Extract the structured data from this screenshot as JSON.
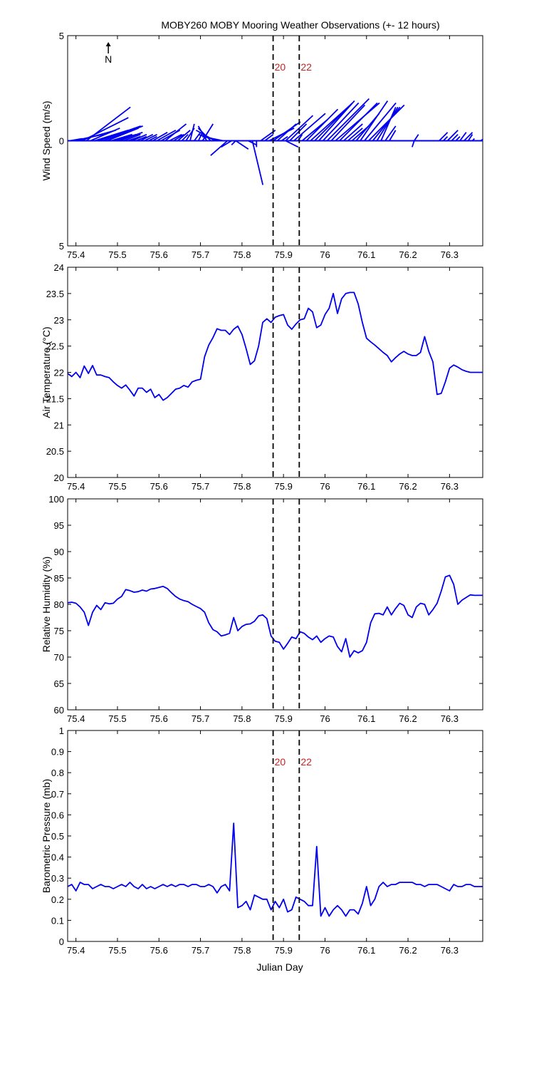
{
  "title": "MOBY260 MOBY Mooring Weather Observations (+- 12 hours)",
  "colors": {
    "series": "#0000ee",
    "marker_label": "#cc2222",
    "axis": "#000000"
  },
  "shared_x": {
    "label": "Julian Day",
    "range": [
      75.38,
      76.38
    ],
    "ticks": [
      75.4,
      75.5,
      75.6,
      75.7,
      75.8,
      75.9,
      76,
      76.1,
      76.2,
      76.3
    ],
    "tick_labels": [
      "75.4",
      "75.5",
      "75.6",
      "75.7",
      "75.8",
      "75.9",
      "76",
      "76.1",
      "76.2",
      "76.3"
    ]
  },
  "time_markers": [
    {
      "x": 75.875,
      "label": "20"
    },
    {
      "x": 75.938,
      "label": "22"
    }
  ],
  "chart_data": [
    {
      "type": "vector",
      "id": "wind",
      "ylabel": "Wind Speed (m/s)",
      "ylim": [
        -5,
        5
      ],
      "yticks": [
        5,
        0,
        -5
      ],
      "ytick_labels": [
        "5",
        "0",
        "5"
      ],
      "north_label": "N",
      "show_marker_labels": true,
      "x": [
        75.385,
        75.395,
        75.405,
        75.415,
        75.425,
        75.435,
        75.445,
        75.455,
        75.465,
        75.475,
        75.485,
        75.495,
        75.505,
        75.515,
        75.525,
        75.535,
        75.545,
        75.555,
        75.565,
        75.575,
        75.585,
        75.595,
        75.605,
        75.615,
        75.625,
        75.635,
        75.645,
        75.655,
        75.665,
        75.675,
        75.685,
        75.695,
        75.705,
        75.715,
        75.725,
        75.735,
        75.745,
        75.755,
        75.765,
        75.775,
        75.785,
        75.795,
        75.805,
        75.815,
        75.825,
        75.835,
        75.845,
        75.855,
        75.865,
        75.875,
        75.885,
        75.895,
        75.905,
        75.915,
        75.925,
        75.935,
        75.945,
        75.955,
        75.965,
        75.975,
        75.985,
        75.995,
        76.005,
        76.015,
        76.025,
        76.035,
        76.045,
        76.055,
        76.065,
        76.075,
        76.085,
        76.095,
        76.105,
        76.115,
        76.125,
        76.135,
        76.145,
        76.155,
        76.165,
        76.175,
        76.185,
        76.195,
        76.205,
        76.215,
        76.225,
        76.235,
        76.245,
        76.255,
        76.265,
        76.275,
        76.285,
        76.295,
        76.305,
        76.315,
        76.325,
        76.335,
        76.345,
        76.355,
        76.365,
        76.375
      ],
      "u": [
        0.6,
        1.4,
        1.8,
        2.2,
        2.1,
        1.4,
        1.6,
        2.0,
        1.9,
        1.5,
        1.0,
        1.0,
        1.1,
        0.8,
        0.6,
        0.7,
        0.5,
        0.6,
        0.6,
        0.4,
        0.7,
        0.9,
        0.9,
        1.0,
        0.6,
        0.5,
        0.6,
        0.3,
        0.4,
        0.2,
        0.3,
        0.2,
        0.5,
        -0.4,
        -0.6,
        -0.9,
        -1.0,
        -1.0,
        -0.8,
        -0.5,
        -0.2,
        0.0,
        0.0,
        0.0,
        0.0,
        0.0,
        0.7,
        0.4,
        1.2,
        1.3,
        0.9,
        0.3,
        1.3,
        0.8,
        1.5,
        0.2,
        1.2,
        1.5,
        1.9,
        1.8,
        1.7,
        1.7,
        2.0,
        1.6,
        2.1,
        1.8,
        0.9,
        0.7,
        0.8,
        1.1,
        1.3,
        1.5,
        1.7,
        1.3,
        1.0,
        0.7,
        0.5,
        0.3,
        0.0,
        0.0,
        0.0,
        0.0,
        0.0,
        0.2,
        0.0,
        0.0,
        0.0,
        0.0,
        0.0,
        0.4,
        0.2,
        0.5,
        0.3,
        0.2,
        0.3,
        0.4,
        0.2,
        0.1,
        0.0,
        0.3
      ],
      "v": [
        0.1,
        0.3,
        0.5,
        1.1,
        1.6,
        0.6,
        0.5,
        0.7,
        0.7,
        0.6,
        0.3,
        0.3,
        0.4,
        0.3,
        0.2,
        0.3,
        0.2,
        0.3,
        0.3,
        0.2,
        0.4,
        0.5,
        0.5,
        0.8,
        0.3,
        0.3,
        0.5,
        0.3,
        0.6,
        0.8,
        0.4,
        0.4,
        0.8,
        0.7,
        0.6,
        0.5,
        0.3,
        0.2,
        -0.7,
        -0.3,
        -0.2,
        0.0,
        0.0,
        0.0,
        0.0,
        -0.3,
        0.5,
        0.3,
        0.6,
        0.9,
        0.8,
        0.2,
        1.2,
        0.8,
        1.3,
        0.3,
        1.0,
        1.5,
        1.7,
        1.8,
        1.9,
        1.8,
        2.0,
        1.7,
        1.8,
        1.8,
        0.8,
        0.6,
        0.7,
        1.3,
        1.9,
        1.8,
        1.7,
        1.6,
        1.6,
        1.6,
        0.7,
        0.5,
        0.0,
        0.0,
        0.0,
        0.0,
        0.0,
        0.3,
        0.0,
        0.0,
        0.0,
        0.0,
        0.0,
        0.4,
        0.2,
        0.5,
        0.3,
        0.2,
        0.4,
        0.4,
        0.3,
        0.1,
        0.0,
        0.2
      ],
      "u_extra": [
        {
          "x": 75.825,
          "u": 0.5,
          "v": -2.1
        },
        {
          "x": 75.785,
          "u": 0.6,
          "v": -0.4
        },
        {
          "x": 75.905,
          "u": 0.6,
          "v": -0.3
        },
        {
          "x": 75.815,
          "u": 0.4,
          "v": -0.2
        },
        {
          "x": 76.215,
          "u": -0.1,
          "v": -0.3
        }
      ]
    },
    {
      "type": "line",
      "id": "air-temp",
      "ylabel": "Air Temperature (°C)",
      "ylim": [
        20,
        24
      ],
      "yticks": [
        20,
        20.5,
        21,
        21.5,
        22,
        22.5,
        23,
        23.5,
        24
      ],
      "ytick_labels": [
        "20",
        "20.5",
        "21",
        "21.5",
        "22",
        "22.5",
        "23",
        "23.5",
        "24"
      ],
      "show_marker_labels": false,
      "x": [
        75.38,
        75.39,
        75.4,
        75.41,
        75.42,
        75.43,
        75.44,
        75.45,
        75.46,
        75.47,
        75.48,
        75.49,
        75.5,
        75.51,
        75.52,
        75.53,
        75.54,
        75.55,
        75.56,
        75.57,
        75.58,
        75.59,
        75.6,
        75.61,
        75.62,
        75.63,
        75.64,
        75.65,
        75.66,
        75.67,
        75.68,
        75.69,
        75.7,
        75.71,
        75.72,
        75.73,
        75.74,
        75.75,
        75.76,
        75.77,
        75.78,
        75.79,
        75.8,
        75.81,
        75.82,
        75.83,
        75.84,
        75.85,
        75.86,
        75.87,
        75.88,
        75.89,
        75.9,
        75.91,
        75.92,
        75.93,
        75.94,
        75.95,
        75.96,
        75.97,
        75.98,
        75.99,
        76.0,
        76.01,
        76.02,
        76.03,
        76.04,
        76.05,
        76.06,
        76.07,
        76.08,
        76.09,
        76.1,
        76.11,
        76.12,
        76.13,
        76.14,
        76.15,
        76.16,
        76.17,
        76.18,
        76.19,
        76.2,
        76.21,
        76.22,
        76.23,
        76.24,
        76.25,
        76.26,
        76.27,
        76.28,
        76.29,
        76.3,
        76.31,
        76.32,
        76.33,
        76.34,
        76.35,
        76.36,
        76.37,
        76.38
      ],
      "y": [
        21.98,
        21.92,
        22.0,
        21.9,
        22.12,
        21.98,
        22.13,
        21.95,
        21.95,
        21.92,
        21.9,
        21.82,
        21.75,
        21.7,
        21.76,
        21.66,
        21.55,
        21.7,
        21.7,
        21.62,
        21.68,
        21.52,
        21.58,
        21.47,
        21.52,
        21.6,
        21.68,
        21.7,
        21.75,
        21.72,
        21.82,
        21.85,
        21.87,
        22.3,
        22.52,
        22.66,
        22.83,
        22.8,
        22.8,
        22.72,
        22.82,
        22.88,
        22.72,
        22.45,
        22.15,
        22.22,
        22.5,
        22.95,
        23.02,
        22.95,
        23.05,
        23.08,
        23.1,
        22.9,
        22.82,
        22.92,
        23.0,
        23.02,
        23.22,
        23.15,
        22.85,
        22.9,
        23.1,
        23.22,
        23.5,
        23.12,
        23.4,
        23.5,
        23.52,
        23.52,
        23.3,
        22.95,
        22.65,
        22.58,
        22.52,
        22.45,
        22.38,
        22.32,
        22.2,
        22.28,
        22.35,
        22.4,
        22.35,
        22.32,
        22.32,
        22.38,
        22.68,
        22.4,
        22.2,
        21.58,
        21.6,
        21.82,
        22.08,
        22.14,
        22.1,
        22.05,
        22.02,
        22.0,
        22.0,
        22.0,
        22.0
      ]
    },
    {
      "type": "line",
      "id": "rel-humidity",
      "ylabel": "Relative Humidity (%)",
      "ylim": [
        60,
        100
      ],
      "yticks": [
        60,
        65,
        70,
        75,
        80,
        85,
        90,
        95,
        100
      ],
      "ytick_labels": [
        "60",
        "65",
        "70",
        "75",
        "80",
        "85",
        "90",
        "95",
        "100"
      ],
      "show_marker_labels": false,
      "x": [
        75.38,
        75.39,
        75.4,
        75.41,
        75.42,
        75.43,
        75.44,
        75.45,
        75.46,
        75.47,
        75.48,
        75.49,
        75.5,
        75.51,
        75.52,
        75.53,
        75.54,
        75.55,
        75.56,
        75.57,
        75.58,
        75.59,
        75.6,
        75.61,
        75.62,
        75.63,
        75.64,
        75.65,
        75.66,
        75.67,
        75.68,
        75.69,
        75.7,
        75.71,
        75.72,
        75.73,
        75.74,
        75.75,
        75.76,
        75.77,
        75.78,
        75.79,
        75.8,
        75.81,
        75.82,
        75.83,
        75.84,
        75.85,
        75.86,
        75.87,
        75.88,
        75.89,
        75.9,
        75.91,
        75.92,
        75.93,
        75.94,
        75.95,
        75.96,
        75.97,
        75.98,
        75.99,
        76.0,
        76.01,
        76.02,
        76.03,
        76.04,
        76.05,
        76.06,
        76.07,
        76.08,
        76.09,
        76.1,
        76.11,
        76.12,
        76.13,
        76.14,
        76.15,
        76.16,
        76.17,
        76.18,
        76.19,
        76.2,
        76.21,
        76.22,
        76.23,
        76.24,
        76.25,
        76.26,
        76.27,
        76.28,
        76.29,
        76.3,
        76.31,
        76.32,
        76.33,
        76.34,
        76.35,
        76.36,
        76.37,
        76.38
      ],
      "y": [
        80.3,
        80.4,
        80.2,
        79.5,
        78.5,
        76.0,
        78.5,
        79.8,
        79.0,
        80.3,
        80.1,
        80.2,
        81.0,
        81.5,
        82.8,
        82.6,
        82.3,
        82.4,
        82.7,
        82.5,
        82.9,
        83.0,
        83.2,
        83.4,
        83.0,
        82.2,
        81.5,
        81.0,
        80.7,
        80.5,
        80.0,
        79.6,
        79.2,
        78.5,
        76.5,
        75.2,
        74.8,
        74.0,
        74.2,
        74.5,
        77.5,
        75.0,
        75.8,
        76.2,
        76.3,
        76.8,
        77.8,
        78.0,
        77.3,
        74.0,
        73.0,
        72.8,
        71.5,
        72.6,
        73.8,
        73.5,
        74.8,
        74.5,
        73.8,
        73.3,
        74.0,
        72.8,
        73.5,
        74.0,
        73.8,
        72.0,
        71.0,
        73.5,
        70.0,
        71.2,
        70.8,
        71.2,
        72.8,
        76.5,
        78.2,
        78.3,
        78.0,
        79.5,
        78.0,
        79.2,
        80.2,
        79.8,
        78.0,
        77.5,
        79.5,
        80.2,
        80.0,
        78.0,
        79.0,
        80.2,
        82.5,
        85.2,
        85.5,
        83.8,
        80.0,
        80.8,
        81.3,
        81.8,
        81.7,
        81.7,
        81.7
      ]
    },
    {
      "type": "line",
      "id": "baro-pressure",
      "ylabel": "Barometric Pressure (mb)",
      "ylim": [
        0,
        1
      ],
      "yticks": [
        0,
        0.1,
        0.2,
        0.3,
        0.4,
        0.5,
        0.6,
        0.7,
        0.8,
        0.9,
        1
      ],
      "ytick_labels": [
        "0",
        "0.1",
        "0.2",
        "0.3",
        "0.4",
        "0.5",
        "0.6",
        "0.7",
        "0.8",
        "0.9",
        "1"
      ],
      "xlabel": "Julian Day",
      "show_marker_labels": true,
      "x": [
        75.38,
        75.39,
        75.4,
        75.41,
        75.42,
        75.43,
        75.44,
        75.45,
        75.46,
        75.47,
        75.48,
        75.49,
        75.5,
        75.51,
        75.52,
        75.53,
        75.54,
        75.55,
        75.56,
        75.57,
        75.58,
        75.59,
        75.6,
        75.61,
        75.62,
        75.63,
        75.64,
        75.65,
        75.66,
        75.67,
        75.68,
        75.69,
        75.7,
        75.71,
        75.72,
        75.73,
        75.74,
        75.75,
        75.76,
        75.77,
        75.78,
        75.79,
        75.8,
        75.81,
        75.82,
        75.83,
        75.84,
        75.85,
        75.86,
        75.87,
        75.88,
        75.89,
        75.9,
        75.91,
        75.92,
        75.93,
        75.94,
        75.95,
        75.96,
        75.97,
        75.98,
        75.99,
        76.0,
        76.01,
        76.02,
        76.03,
        76.04,
        76.05,
        76.06,
        76.07,
        76.08,
        76.09,
        76.1,
        76.11,
        76.12,
        76.13,
        76.14,
        76.15,
        76.16,
        76.17,
        76.18,
        76.19,
        76.2,
        76.21,
        76.22,
        76.23,
        76.24,
        76.25,
        76.26,
        76.27,
        76.28,
        76.29,
        76.3,
        76.31,
        76.32,
        76.33,
        76.34,
        76.35,
        76.36,
        76.37,
        76.38
      ],
      "y": [
        0.26,
        0.27,
        0.24,
        0.28,
        0.27,
        0.27,
        0.25,
        0.26,
        0.27,
        0.26,
        0.26,
        0.25,
        0.26,
        0.27,
        0.26,
        0.28,
        0.26,
        0.25,
        0.27,
        0.25,
        0.26,
        0.25,
        0.26,
        0.27,
        0.26,
        0.27,
        0.26,
        0.27,
        0.27,
        0.26,
        0.27,
        0.27,
        0.26,
        0.26,
        0.27,
        0.26,
        0.23,
        0.26,
        0.27,
        0.24,
        0.56,
        0.16,
        0.17,
        0.19,
        0.15,
        0.22,
        0.21,
        0.2,
        0.2,
        0.15,
        0.19,
        0.16,
        0.2,
        0.14,
        0.15,
        0.21,
        0.2,
        0.19,
        0.17,
        0.17,
        0.45,
        0.12,
        0.16,
        0.12,
        0.15,
        0.17,
        0.15,
        0.12,
        0.15,
        0.15,
        0.13,
        0.18,
        0.26,
        0.17,
        0.2,
        0.26,
        0.28,
        0.26,
        0.27,
        0.27,
        0.28,
        0.28,
        0.28,
        0.28,
        0.27,
        0.27,
        0.26,
        0.27,
        0.27,
        0.27,
        0.26,
        0.25,
        0.24,
        0.27,
        0.26,
        0.26,
        0.27,
        0.27,
        0.26,
        0.26,
        0.26
      ]
    }
  ]
}
